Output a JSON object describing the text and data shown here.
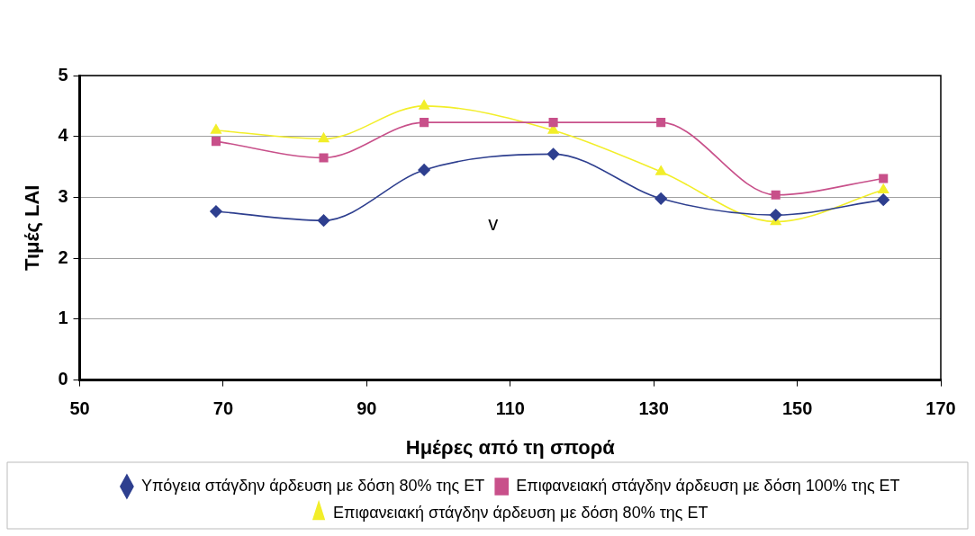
{
  "chart_data": {
    "type": "line",
    "xlabel": "Ημέρες από τη σπορά",
    "ylabel": "Τιμές LAI",
    "x": [
      69,
      84,
      98,
      116,
      131,
      147,
      162
    ],
    "series": [
      {
        "name": "Υπόγεια στάγδην άρδευση με δόση 80% της ET",
        "color": "#2e3f8f",
        "marker": "diamond",
        "values": [
          2.77,
          2.62,
          3.45,
          3.71,
          2.98,
          2.71,
          2.96
        ]
      },
      {
        "name": "Επιφανειακή στάγδην άρδευση με δόση 100% της ET",
        "color": "#c8508a",
        "marker": "square",
        "values": [
          3.92,
          3.65,
          4.23,
          4.23,
          4.23,
          3.04,
          3.31
        ]
      },
      {
        "name": "Επιφανειακή στάγδην άρδευση με δόση 80% της ET",
        "color": "#f2ee2a",
        "marker": "triangle",
        "values": [
          4.1,
          3.96,
          4.5,
          4.1,
          3.42,
          2.6,
          3.12
        ]
      }
    ],
    "xlim": [
      50,
      170
    ],
    "xticks": [
      50,
      70,
      90,
      110,
      130,
      150,
      170
    ],
    "ylim": [
      0,
      5
    ],
    "yticks": [
      0,
      1,
      2,
      3,
      4,
      5
    ],
    "grid": "y",
    "legend": "bottom",
    "annotations": [
      "v"
    ]
  }
}
